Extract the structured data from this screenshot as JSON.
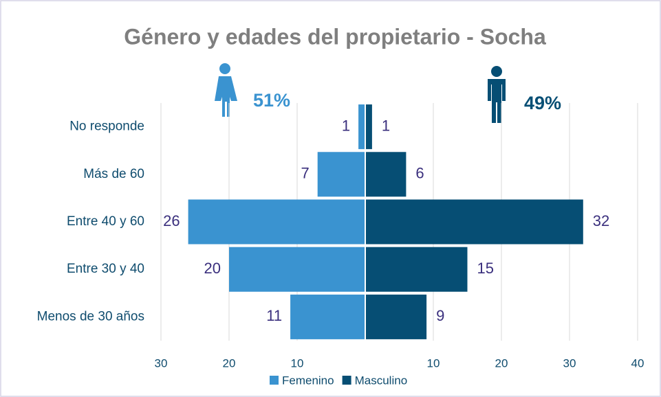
{
  "chart_data": {
    "type": "pyramid",
    "title": "Género y edades del propietario - Socha",
    "categories": [
      "No responde",
      "Más de 60",
      "Entre 40 y 60",
      "Entre 30 y 40",
      "Menos de 30 años"
    ],
    "series": [
      {
        "name": "Femenino",
        "color": "#3a93d0",
        "share_label": "51%",
        "values": [
          -1,
          -7,
          -26,
          -20,
          -11
        ],
        "value_labels": [
          "1",
          "7",
          "26",
          "20",
          "11"
        ]
      },
      {
        "name": "Masculino",
        "color": "#064e74",
        "share_label": "49%",
        "values": [
          1,
          6,
          32,
          15,
          9
        ]
      }
    ],
    "xlim": [
      -30,
      40
    ],
    "xticks": [
      {
        "value": -30,
        "label": "30"
      },
      {
        "value": -20,
        "label": "20"
      },
      {
        "value": -10,
        "label": "10"
      },
      10,
      20,
      30,
      40
    ],
    "grid": true,
    "legend": "bottom"
  }
}
